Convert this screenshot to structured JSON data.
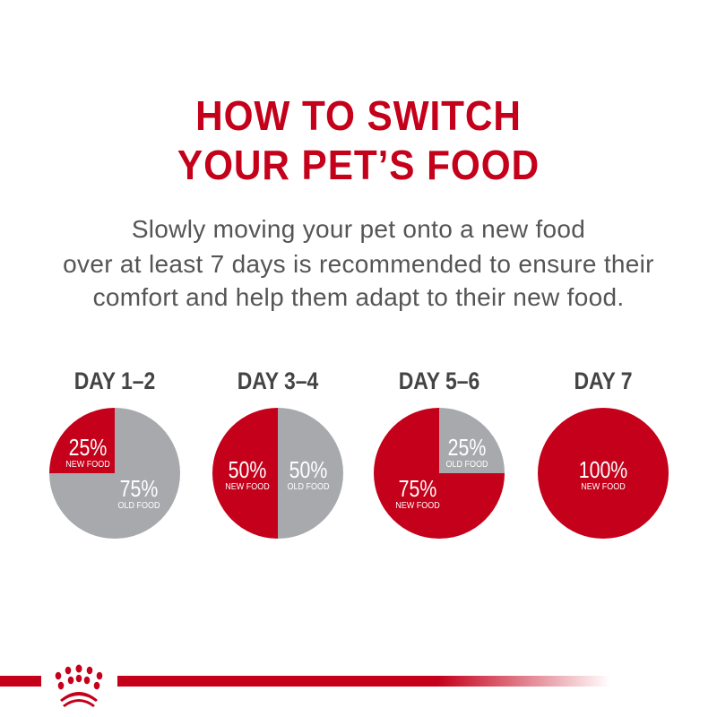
{
  "header": {
    "title_lines": [
      "HOW TO SWITCH",
      "YOUR PET’S FOOD"
    ],
    "subtitle_lines": [
      "Slowly moving your pet onto a new food",
      "over at least 7 days is recommended to ensure their",
      "comfort and help them adapt to their new food."
    ]
  },
  "colors": {
    "new_food": "#c4001a",
    "old_food": "#a7a9ac",
    "accent": "#c4001a"
  },
  "chart_data": {
    "type": "pie",
    "charts": [
      {
        "title": "DAY 1–2",
        "slices": [
          {
            "label": "NEW FOOD",
            "value": 25,
            "text": "25%"
          },
          {
            "label": "OLD FOOD",
            "value": 75,
            "text": "75%"
          }
        ]
      },
      {
        "title": "DAY 3–4",
        "slices": [
          {
            "label": "NEW FOOD",
            "value": 50,
            "text": "50%"
          },
          {
            "label": "OLD FOOD",
            "value": 50,
            "text": "50%"
          }
        ]
      },
      {
        "title": "DAY 5–6",
        "slices": [
          {
            "label": "NEW FOOD",
            "value": 75,
            "text": "75%"
          },
          {
            "label": "OLD FOOD",
            "value": 25,
            "text": "25%"
          }
        ]
      },
      {
        "title": "DAY 7",
        "slices": [
          {
            "label": "NEW FOOD",
            "value": 100,
            "text": "100%"
          }
        ]
      }
    ]
  },
  "footer": {
    "logo_icon": "crown-logo-icon"
  }
}
